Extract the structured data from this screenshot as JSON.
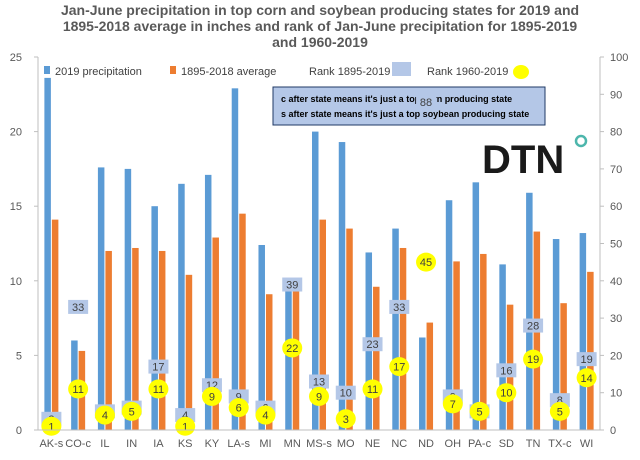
{
  "title_lines": [
    "Jan-June precipitation in top corn and soybean producing states for 2019 and",
    "1895-2018 average in inches and rank of Jan-June precipitation for 1895-2019",
    "and 1960-2019"
  ],
  "notes": [
    "c after state means it's just a top corn producing state",
    "s after state means it's just a top soybean producing state"
  ],
  "logo_text": "DTN",
  "colors": {
    "series_2019": "#5B9BD5",
    "series_avg": "#ED7D31",
    "rank_box": "#B4C7E7",
    "rank_circle": "#FFFF00",
    "note_box": "#B4C7E7",
    "logo_accent": "#4DB6AC"
  },
  "chart_data": {
    "type": "bar",
    "title": "Jan-June precipitation in top corn and soybean producing states for 2019 and 1895-2018 average in inches and rank of Jan-June precipitation for 1895-2019 and 1960-2019",
    "categories": [
      "AK-s",
      "CO-c",
      "IL",
      "IN",
      "IA",
      "KS",
      "KY",
      "LA-s",
      "MI",
      "MN",
      "MS-s",
      "MO",
      "NE",
      "NC",
      "ND",
      "OH",
      "PA-c",
      "SD",
      "TN",
      "TX-c",
      "WI"
    ],
    "series": [
      {
        "name": "2019 precipitation",
        "values": [
          23.6,
          6.0,
          17.6,
          17.5,
          15.0,
          16.5,
          17.1,
          22.9,
          12.4,
          9.9,
          20.0,
          19.3,
          11.9,
          13.5,
          6.2,
          15.4,
          16.6,
          11.1,
          15.9,
          12.8,
          13.2
        ]
      },
      {
        "name": "1895-2018 average",
        "values": [
          14.1,
          5.3,
          12.0,
          12.2,
          12.0,
          10.4,
          12.9,
          14.5,
          9.1,
          9.4,
          14.1,
          13.5,
          9.6,
          12.2,
          7.2,
          11.3,
          11.8,
          8.4,
          13.3,
          8.5,
          10.6
        ]
      }
    ],
    "rank_1895_2019": {
      "name": "Rank 1895-2019",
      "values": [
        3,
        33,
        5,
        6,
        17,
        4,
        12,
        9,
        6,
        39,
        13,
        10,
        23,
        33,
        88,
        9,
        5,
        16,
        28,
        8,
        19
      ]
    },
    "rank_1960_2019": {
      "name": "Rank 1960-2019",
      "values": [
        1,
        11,
        4,
        5,
        11,
        1,
        9,
        6,
        4,
        22,
        9,
        3,
        11,
        17,
        45,
        7,
        5,
        10,
        19,
        5,
        14
      ]
    },
    "y_left": {
      "min": 0,
      "max": 25,
      "ticks": [
        0,
        5,
        10,
        15,
        20,
        25
      ]
    },
    "y_right": {
      "min": 0,
      "max": 100,
      "ticks": [
        0,
        10,
        20,
        30,
        40,
        50,
        60,
        70,
        80,
        90,
        100
      ]
    },
    "grid": false,
    "legend_position": "top"
  }
}
